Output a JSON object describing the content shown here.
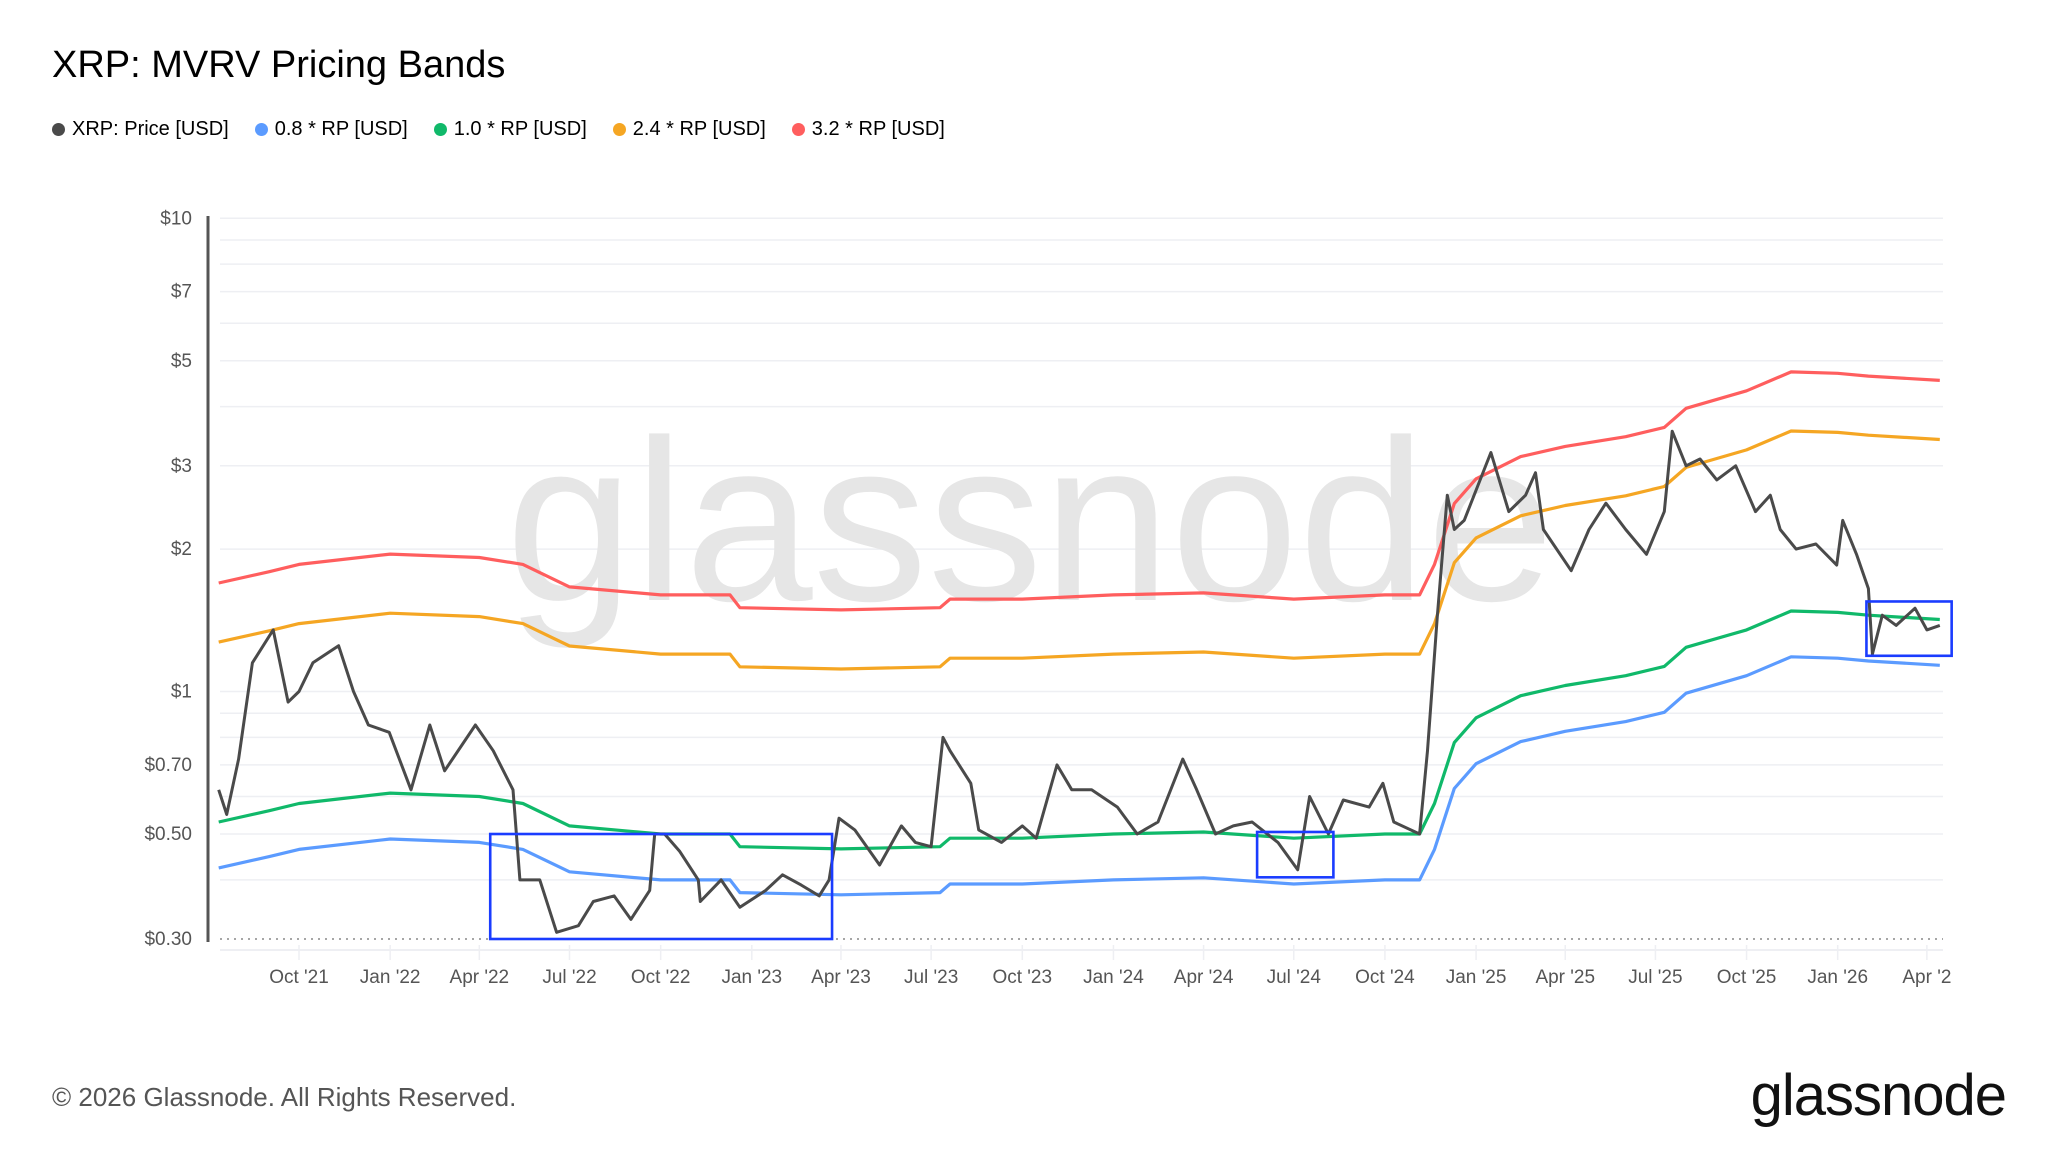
{
  "title": "XRP: MVRV Pricing Bands",
  "footer": "© 2026 Glassnode. All Rights Reserved.",
  "logo": "glassnode",
  "watermark": "glassnode",
  "chart_data": {
    "type": "line",
    "title": "XRP: MVRV Pricing Bands",
    "y_scale": "log",
    "ylim": [
      0.3,
      10
    ],
    "xlim": [
      "2021-07-12",
      "2026-04-14"
    ],
    "grid": true,
    "legend_placement": "top-left",
    "y_ticks": [
      {
        "value": 10,
        "label": "$10"
      },
      {
        "value": 7,
        "label": "$7"
      },
      {
        "value": 5,
        "label": "$5"
      },
      {
        "value": 3,
        "label": "$3"
      },
      {
        "value": 2,
        "label": "$2"
      },
      {
        "value": 1,
        "label": "$1"
      },
      {
        "value": 0.7,
        "label": "$0.70"
      },
      {
        "value": 0.5,
        "label": "$0.50"
      },
      {
        "value": 0.3,
        "label": "$0.30"
      }
    ],
    "y_gridlines": [
      10,
      9,
      8,
      7,
      6,
      5,
      4,
      3,
      2,
      1,
      0.9,
      0.8,
      0.7,
      0.6,
      0.5,
      0.4
    ],
    "x_ticks": [
      {
        "date": "2021-10-01",
        "label": "Oct '21"
      },
      {
        "date": "2022-01-01",
        "label": "Jan '22"
      },
      {
        "date": "2022-04-01",
        "label": "Apr '22"
      },
      {
        "date": "2022-07-01",
        "label": "Jul '22"
      },
      {
        "date": "2022-10-01",
        "label": "Oct '22"
      },
      {
        "date": "2023-01-01",
        "label": "Jan '23"
      },
      {
        "date": "2023-04-01",
        "label": "Apr '23"
      },
      {
        "date": "2023-07-01",
        "label": "Jul '23"
      },
      {
        "date": "2023-10-01",
        "label": "Oct '23"
      },
      {
        "date": "2024-01-01",
        "label": "Jan '24"
      },
      {
        "date": "2024-04-01",
        "label": "Apr '24"
      },
      {
        "date": "2024-07-01",
        "label": "Jul '24"
      },
      {
        "date": "2024-10-01",
        "label": "Oct '24"
      },
      {
        "date": "2025-01-01",
        "label": "Jan '25"
      },
      {
        "date": "2025-04-01",
        "label": "Apr '25"
      },
      {
        "date": "2025-07-01",
        "label": "Jul '25"
      },
      {
        "date": "2025-10-01",
        "label": "Oct '25"
      },
      {
        "date": "2026-01-01",
        "label": "Jan '26"
      },
      {
        "date": "2026-04-01",
        "label": "Apr '2"
      }
    ],
    "rp_dates": [
      "2021-07-12",
      "2021-09-01",
      "2021-10-01",
      "2022-01-01",
      "2022-04-01",
      "2022-05-15",
      "2022-07-01",
      "2022-10-01",
      "2022-12-10",
      "2022-12-20",
      "2023-04-01",
      "2023-07-10",
      "2023-07-20",
      "2023-10-01",
      "2024-01-01",
      "2024-04-01",
      "2024-07-01",
      "2024-10-01",
      "2024-11-05",
      "2024-11-20",
      "2024-12-10",
      "2025-01-01",
      "2025-02-15",
      "2025-04-01",
      "2025-06-01",
      "2025-07-10",
      "2025-08-01",
      "2025-10-01",
      "2025-11-15",
      "2026-01-01",
      "2026-02-01",
      "2026-04-14"
    ],
    "series": [
      {
        "name": "XRP: Price [USD]",
        "color": "#4a4a4a",
        "dates": [
          "2021-07-12",
          "2021-07-20",
          "2021-08-01",
          "2021-08-15",
          "2021-09-05",
          "2021-09-20",
          "2021-10-01",
          "2021-10-15",
          "2021-11-10",
          "2021-11-25",
          "2021-12-10",
          "2021-12-31",
          "2022-01-22",
          "2022-02-10",
          "2022-02-25",
          "2022-03-28",
          "2022-04-15",
          "2022-05-05",
          "2022-05-12",
          "2022-06-01",
          "2022-06-18",
          "2022-07-10",
          "2022-07-25",
          "2022-08-15",
          "2022-09-01",
          "2022-09-20",
          "2022-09-25",
          "2022-10-05",
          "2022-10-20",
          "2022-11-08",
          "2022-11-10",
          "2022-12-01",
          "2022-12-20",
          "2023-01-15",
          "2023-02-01",
          "2023-02-20",
          "2023-03-10",
          "2023-03-20",
          "2023-03-30",
          "2023-04-15",
          "2023-05-10",
          "2023-06-01",
          "2023-06-15",
          "2023-07-01",
          "2023-07-13",
          "2023-07-20",
          "2023-08-10",
          "2023-08-18",
          "2023-09-10",
          "2023-10-01",
          "2023-10-15",
          "2023-11-05",
          "2023-11-20",
          "2023-12-10",
          "2024-01-05",
          "2024-01-25",
          "2024-02-15",
          "2024-03-11",
          "2024-03-25",
          "2024-04-13",
          "2024-05-01",
          "2024-05-20",
          "2024-06-15",
          "2024-07-05",
          "2024-07-17",
          "2024-08-05",
          "2024-08-20",
          "2024-09-15",
          "2024-09-29",
          "2024-10-10",
          "2024-11-05",
          "2024-11-13",
          "2024-11-23",
          "2024-12-03",
          "2024-12-10",
          "2024-12-20",
          "2025-01-16",
          "2025-02-03",
          "2025-02-20",
          "2025-03-02",
          "2025-03-10",
          "2025-04-07",
          "2025-04-25",
          "2025-05-12",
          "2025-06-01",
          "2025-06-22",
          "2025-07-10",
          "2025-07-18",
          "2025-08-01",
          "2025-08-15",
          "2025-09-01",
          "2025-09-20",
          "2025-10-10",
          "2025-10-25",
          "2025-11-04",
          "2025-11-20",
          "2025-12-10",
          "2025-12-31",
          "2026-01-06",
          "2026-01-20",
          "2026-02-01",
          "2026-02-05",
          "2026-02-15",
          "2026-03-01",
          "2026-03-20",
          "2026-04-01",
          "2026-04-14"
        ],
        "values": [
          0.62,
          0.55,
          0.72,
          1.15,
          1.35,
          0.95,
          1.0,
          1.15,
          1.25,
          1.0,
          0.85,
          0.82,
          0.62,
          0.85,
          0.68,
          0.85,
          0.75,
          0.62,
          0.4,
          0.4,
          0.31,
          0.32,
          0.36,
          0.37,
          0.33,
          0.38,
          0.5,
          0.5,
          0.46,
          0.4,
          0.36,
          0.4,
          0.35,
          0.38,
          0.41,
          0.39,
          0.37,
          0.4,
          0.54,
          0.51,
          0.43,
          0.52,
          0.48,
          0.47,
          0.8,
          0.75,
          0.64,
          0.51,
          0.48,
          0.52,
          0.49,
          0.7,
          0.62,
          0.62,
          0.57,
          0.5,
          0.53,
          0.72,
          0.62,
          0.5,
          0.52,
          0.53,
          0.48,
          0.42,
          0.6,
          0.5,
          0.59,
          0.57,
          0.64,
          0.53,
          0.5,
          0.75,
          1.45,
          2.6,
          2.2,
          2.3,
          3.2,
          2.4,
          2.6,
          2.9,
          2.2,
          1.8,
          2.2,
          2.5,
          2.2,
          1.95,
          2.4,
          3.55,
          3.0,
          3.1,
          2.8,
          3.0,
          2.4,
          2.6,
          2.2,
          2.0,
          2.05,
          1.85,
          2.3,
          1.95,
          1.65,
          1.2,
          1.45,
          1.38,
          1.5,
          1.35,
          1.38
        ]
      },
      {
        "name": "0.8 * RP [USD]",
        "color": "#5b9bff",
        "values": [
          0.424,
          0.448,
          0.464,
          0.488,
          0.48,
          0.464,
          0.416,
          0.4,
          0.4,
          0.376,
          0.372,
          0.376,
          0.392,
          0.392,
          0.4,
          0.404,
          0.392,
          0.4,
          0.4,
          0.464,
          0.624,
          0.704,
          0.784,
          0.824,
          0.864,
          0.904,
          0.992,
          1.08,
          1.184,
          1.176,
          1.16,
          1.136
        ]
      },
      {
        "name": "1.0 * RP [USD]",
        "color": "#10b96a",
        "values": [
          0.53,
          0.56,
          0.58,
          0.61,
          0.6,
          0.58,
          0.52,
          0.5,
          0.5,
          0.47,
          0.465,
          0.47,
          0.49,
          0.49,
          0.5,
          0.505,
          0.49,
          0.5,
          0.5,
          0.58,
          0.78,
          0.88,
          0.98,
          1.03,
          1.08,
          1.13,
          1.24,
          1.35,
          1.48,
          1.47,
          1.45,
          1.42
        ]
      },
      {
        "name": "2.4 * RP [USD]",
        "color": "#f5a623",
        "values": [
          1.272,
          1.344,
          1.392,
          1.464,
          1.44,
          1.392,
          1.248,
          1.2,
          1.2,
          1.128,
          1.116,
          1.128,
          1.176,
          1.176,
          1.2,
          1.212,
          1.176,
          1.2,
          1.2,
          1.392,
          1.872,
          2.112,
          2.352,
          2.472,
          2.592,
          2.712,
          2.976,
          3.24,
          3.552,
          3.528,
          3.48,
          3.408
        ]
      },
      {
        "name": "3.2 * RP [USD]",
        "color": "#ff5e5e",
        "values": [
          1.696,
          1.792,
          1.856,
          1.952,
          1.92,
          1.856,
          1.664,
          1.6,
          1.6,
          1.504,
          1.488,
          1.504,
          1.568,
          1.568,
          1.6,
          1.616,
          1.568,
          1.6,
          1.6,
          1.856,
          2.496,
          2.816,
          3.136,
          3.296,
          3.456,
          3.616,
          3.968,
          4.32,
          4.736,
          4.704,
          4.64,
          4.544
        ]
      }
    ],
    "highlights": [
      {
        "from": "2022-04-12",
        "to": "2023-03-23",
        "low": 0.3,
        "high": 0.5,
        "color": "#1a3cff"
      },
      {
        "from": "2024-05-25",
        "to": "2024-08-10",
        "low": 0.405,
        "high": 0.505,
        "color": "#1a3cff"
      },
      {
        "from": "2026-01-30",
        "to": "2026-04-26",
        "low": 1.19,
        "high": 1.55,
        "color": "#1a3cff"
      }
    ]
  }
}
